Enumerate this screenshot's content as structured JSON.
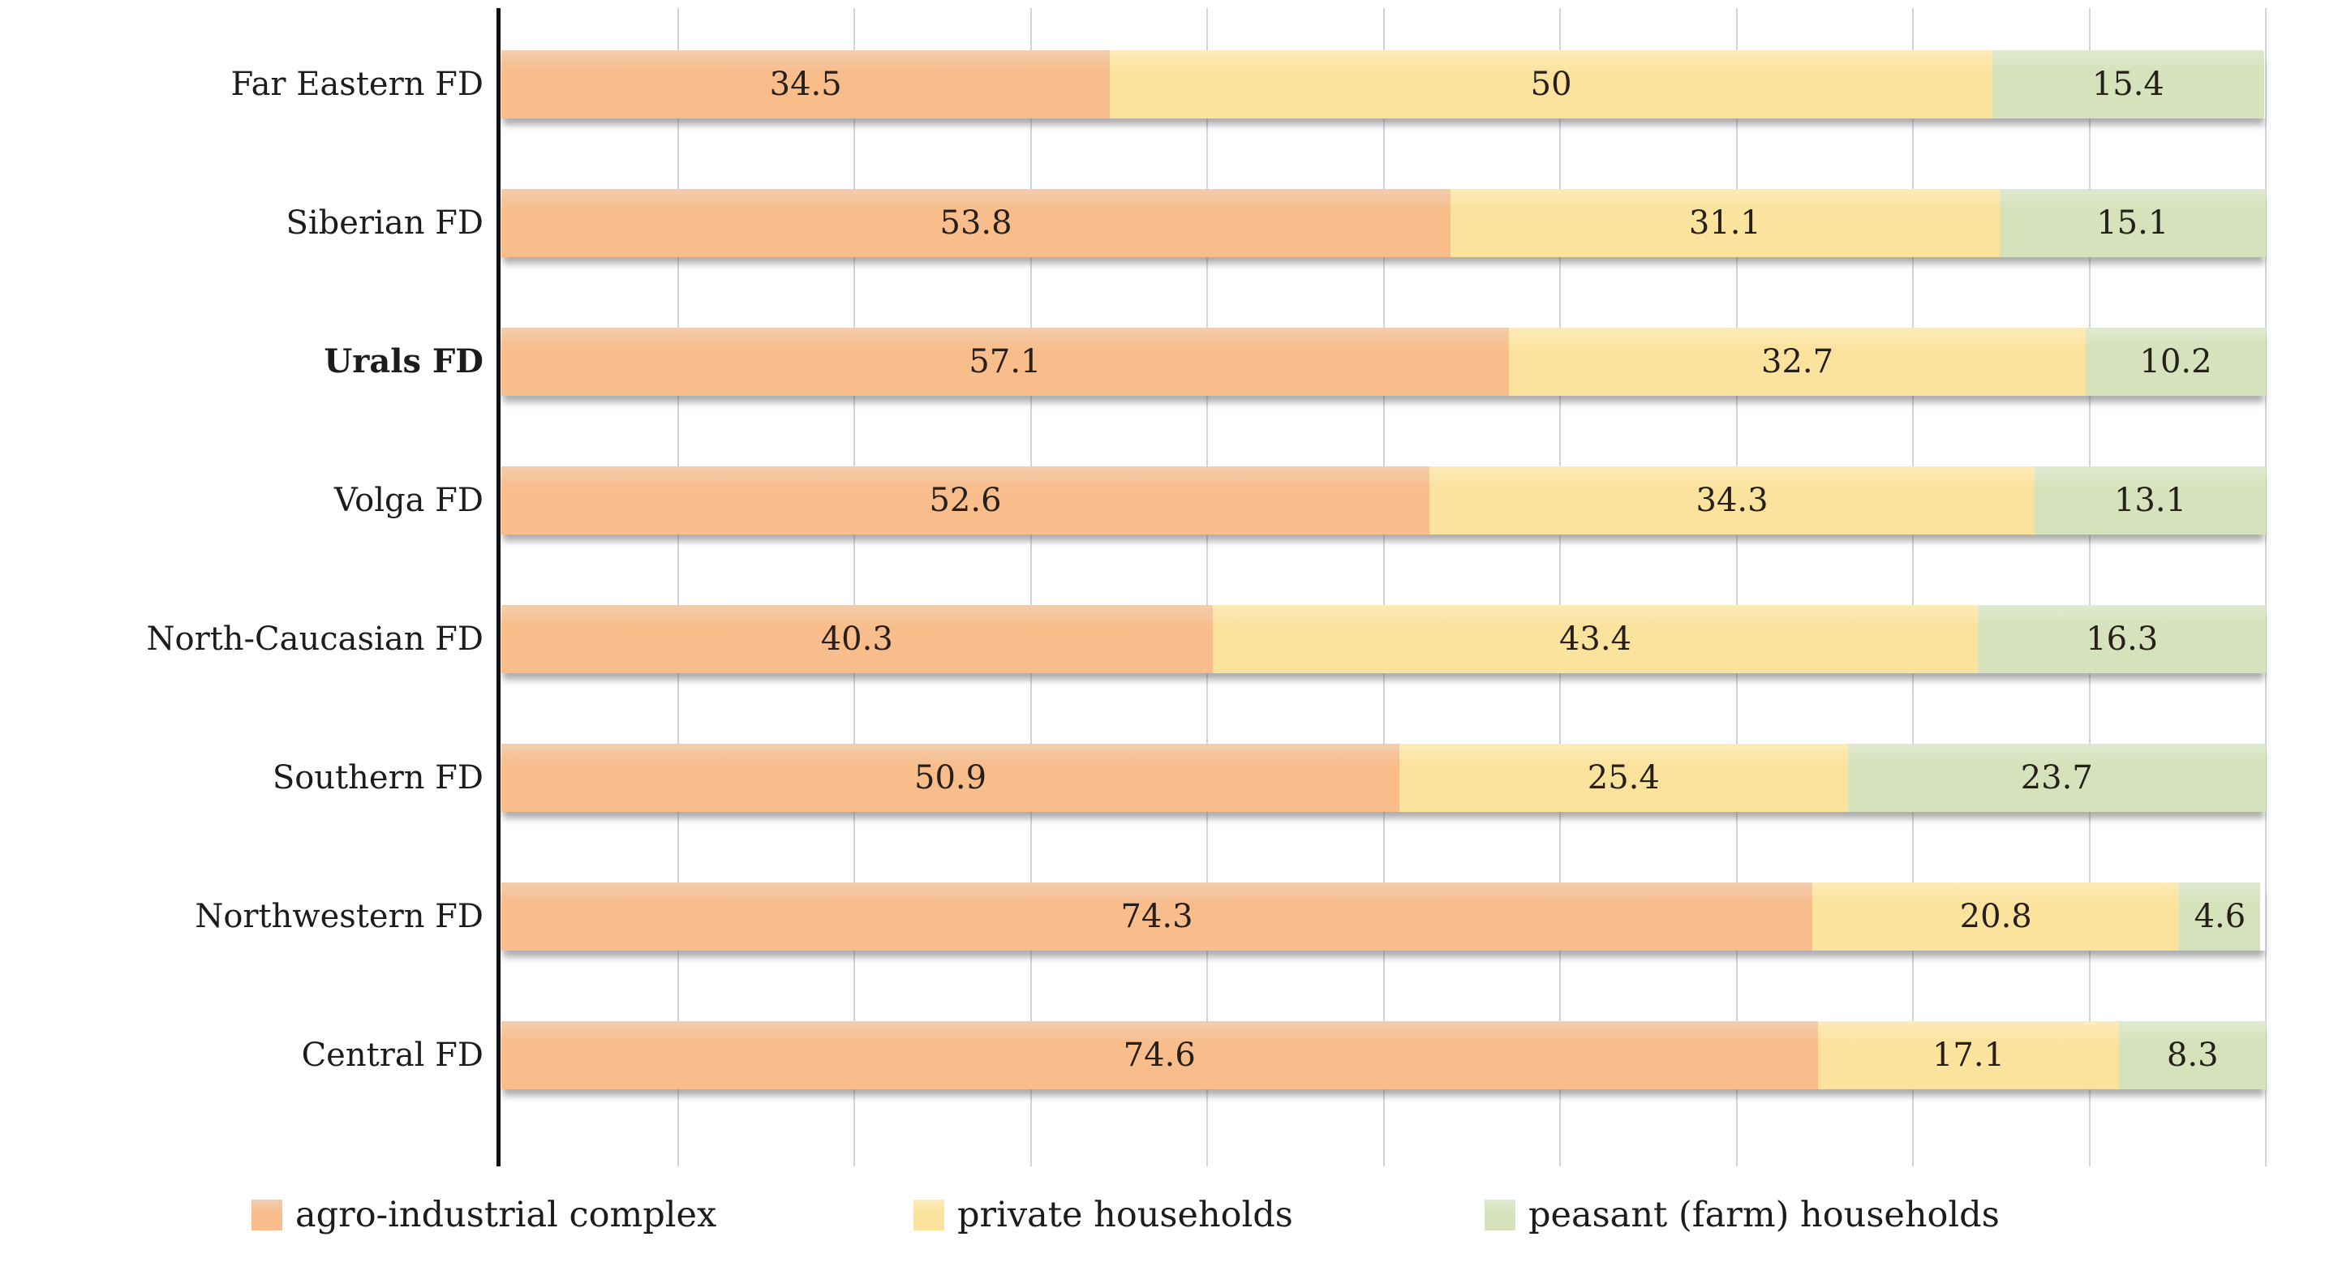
{
  "chart_data": {
    "type": "bar",
    "subtype": "horizontal-stacked-100-percent",
    "title": "",
    "xlabel": "",
    "ylabel": "",
    "xlim": [
      0,
      100
    ],
    "gridline_interval": 10,
    "grid": true,
    "legend_position": "bottom",
    "categories": [
      "Far Eastern FD",
      "Siberian FD",
      "Urals FD",
      "Volga FD",
      "North-Caucasian FD",
      "Southern FD",
      "Northwestern FD",
      "Central FD"
    ],
    "bold_category_indexes": [
      2
    ],
    "series": [
      {
        "name": "agro-industrial complex",
        "color": "#F8BD8B",
        "color_light": "#F2CDAE",
        "values": [
          34.5,
          53.8,
          57.1,
          52.6,
          40.3,
          50.9,
          74.3,
          74.6
        ]
      },
      {
        "name": "private households",
        "color": "#FBE29D",
        "color_light": "#FDEBB9",
        "values": [
          50,
          31.1,
          32.7,
          34.3,
          43.4,
          25.4,
          20.8,
          17.1
        ]
      },
      {
        "name": "peasant (farm) households",
        "color": "#D5E2BB",
        "color_light": "#E0E9D0",
        "values": [
          15.4,
          15.1,
          10.2,
          13.1,
          16.3,
          23.7,
          4.6,
          8.3
        ]
      }
    ],
    "value_labels": [
      [
        "34.5",
        "50",
        "15.4"
      ],
      [
        "53.8",
        "31.1",
        "15.1"
      ],
      [
        "57.1",
        "32.7",
        "10.2"
      ],
      [
        "52.6",
        "34.3",
        "13.1"
      ],
      [
        "40.3",
        "43.4",
        "16.3"
      ],
      [
        "50.9",
        "25.4",
        "23.7"
      ],
      [
        "74.3",
        "20.8",
        "4.6"
      ],
      [
        "74.6",
        "17.1",
        "8.3"
      ]
    ]
  },
  "colors": {
    "background": "#FFFFFF",
    "gridline": "#C9D6DD",
    "axis": "#111111",
    "value_label_text": "#27201A",
    "category_label_text": "#1C1C1C"
  },
  "legend": {
    "items": [
      {
        "label": "agro-industrial complex"
      },
      {
        "label": "private households"
      },
      {
        "label": "peasant (farm) households"
      }
    ]
  }
}
